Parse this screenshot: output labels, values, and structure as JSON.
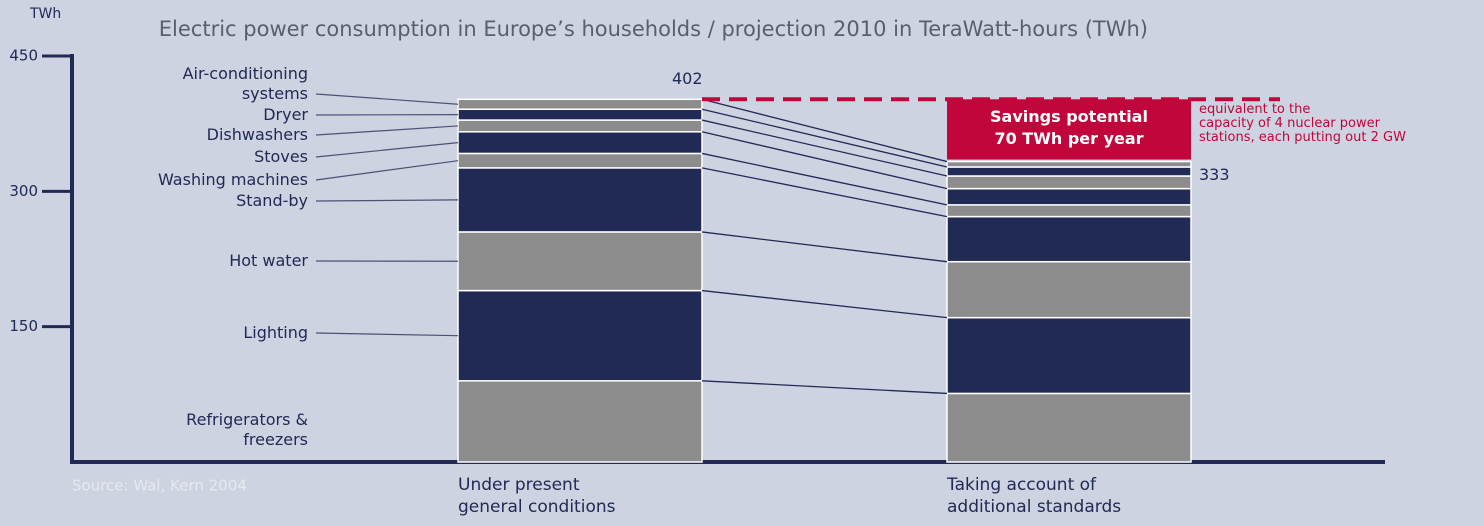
{
  "chart_data": {
    "type": "stacked-bar",
    "title": "Electric power consumption in Europe’s households / projection 2010 in TeraWatt-hours (TWh)",
    "y_label": "TWh",
    "source": "Source: Wal, Kern 2004",
    "categories": [
      "Under present general conditions",
      "Taking account of additional standards"
    ],
    "series": [
      {
        "name": "Refrigerators & freezers",
        "color": "#8c8c8c",
        "values": [
          90,
          76
        ]
      },
      {
        "name": "Lighting",
        "color": "#212a55",
        "values": [
          100,
          84
        ]
      },
      {
        "name": "Hot water",
        "color": "#8c8c8c",
        "values": [
          65,
          62
        ]
      },
      {
        "name": "Stand-by",
        "color": "#212a55",
        "values": [
          71,
          50
        ]
      },
      {
        "name": "Washing machines",
        "color": "#8c8c8c",
        "values": [
          16,
          13
        ]
      },
      {
        "name": "Stoves",
        "color": "#212a55",
        "values": [
          24,
          18
        ]
      },
      {
        "name": "Dishwashers",
        "color": "#8c8c8c",
        "values": [
          13,
          14
        ]
      },
      {
        "name": "Dryer",
        "color": "#212a55",
        "values": [
          12,
          10
        ]
      },
      {
        "name": "Air-conditioning systems",
        "color": "#8c8c8c",
        "values": [
          11,
          6
        ]
      }
    ],
    "totals": [
      402,
      333
    ],
    "savings_title": [
      "Savings potential",
      "70 TWh per year"
    ],
    "savings_note": [
      "equivalent to the",
      "capacity of 4 nuclear power",
      "stations, each putting out 2 GW"
    ],
    "savings_color": "#c0063a",
    "ylim": [
      0,
      450
    ],
    "yticks": [
      150,
      300,
      450
    ]
  }
}
